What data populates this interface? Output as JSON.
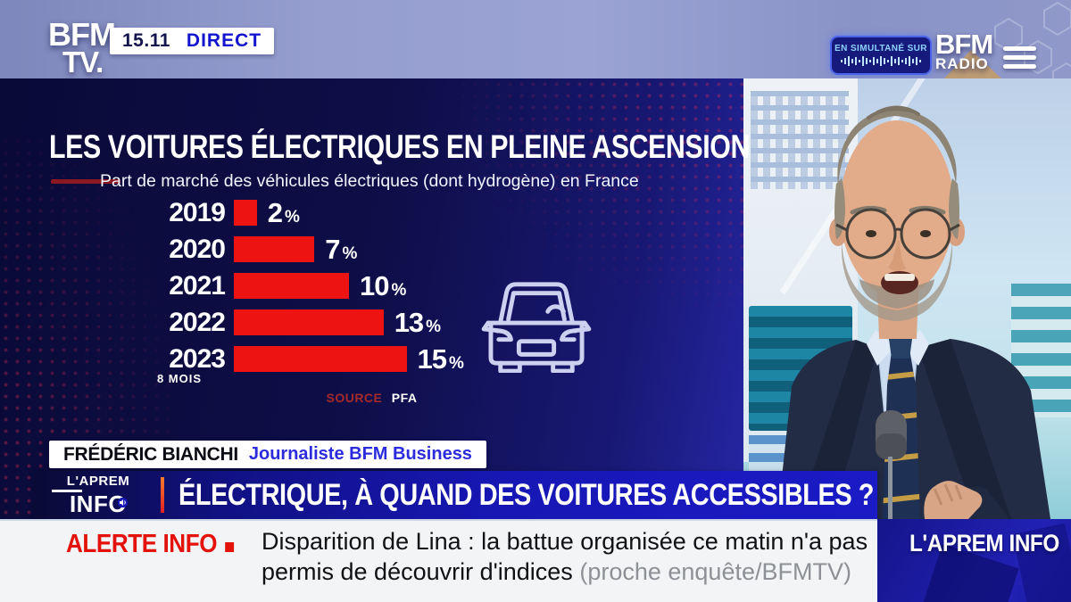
{
  "header": {
    "channel_logo": {
      "line1": "BFM",
      "line2": "TV."
    },
    "time": "15.11",
    "live_label": "DIRECT",
    "simulcast_badge": "EN SIMULTANÉ SUR",
    "radio_logo": {
      "line1": "BFM",
      "line2": "RADIO"
    }
  },
  "chart_data": {
    "type": "bar",
    "orientation": "horizontal",
    "title": "LES VOITURES ÉLECTRIQUES EN PLEINE ASCENSION",
    "subtitle": "Part de marché des véhicules électriques (dont hydrogène) en France",
    "categories": [
      "2019",
      "2020",
      "2021",
      "2022",
      "2023"
    ],
    "category_notes": {
      "2023": "8 MOIS"
    },
    "values": [
      2,
      7,
      10,
      13,
      15
    ],
    "unit": "%",
    "xlim": [
      0,
      16
    ],
    "bar_color": "#ee1313",
    "source_label": "SOURCE",
    "source": "PFA",
    "legend": null,
    "grid": false
  },
  "speaker": {
    "name": "FRÉDÉRIC BIANCHI",
    "role": "Journaliste BFM Business"
  },
  "banner": {
    "logo": {
      "line1": "L'APREM",
      "line2": "INFO"
    },
    "headline": "ÉLECTRIQUE, À QUAND DES VOITURES ACCESSIBLES ?"
  },
  "ticker": {
    "alert_label": "ALERTE INFO",
    "headline": "Disparition de Lina : la battue organisée ce matin n'a pas permis de découvrir d'indices",
    "attribution": "(proche enquête/BFMTV)"
  },
  "bottom_right": {
    "show_label": "L'APREM INFO"
  },
  "colors": {
    "bar_red": "#ee1313",
    "panel_navy": "#0e0e48",
    "banner_blue": "#1717b4",
    "alert_red": "#e3120b",
    "direct_blue": "#1414cf",
    "role_blue": "#2b2bdd",
    "bottom_panel_blue": "#1b1ba8",
    "studio_wall": "#8f98c9"
  }
}
